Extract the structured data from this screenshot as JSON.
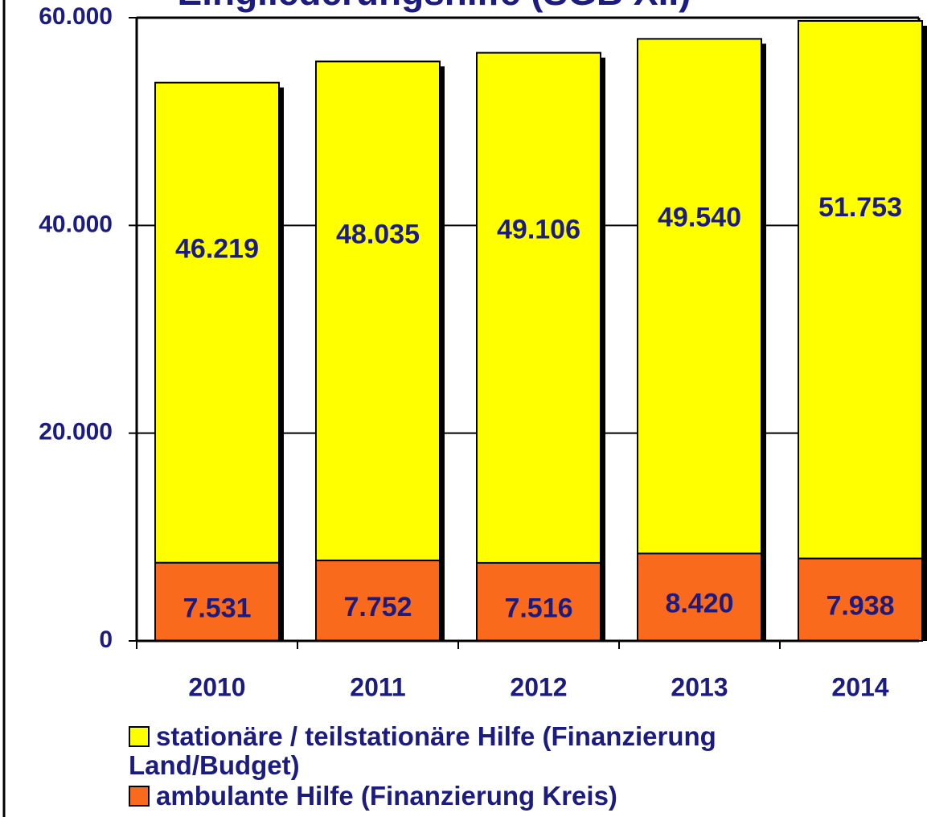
{
  "chart_data": {
    "type": "stacked-bar",
    "title": "Eingliederungshilfe (SGB XII)",
    "categories": [
      "2010",
      "2011",
      "2012",
      "2013",
      "2014"
    ],
    "series": [
      {
        "name": "ambulante Hilfe (Finanzierung Kreis)",
        "color": "#fa6a1c",
        "values": [
          7531,
          7752,
          7516,
          8420,
          7938
        ],
        "value_labels": [
          "7.531",
          "7.752",
          "7.516",
          "8.420",
          "7.938"
        ]
      },
      {
        "name": "stationäre / teilstationäre Hilfe (Finanzierung Land/Budget)",
        "color": "#ffff00",
        "values": [
          46219,
          48035,
          49106,
          49540,
          51753
        ],
        "value_labels": [
          "46.219",
          "48.035",
          "49.106",
          "49.540",
          "51.753"
        ]
      }
    ],
    "ylim": [
      0,
      60000
    ],
    "yticks": [
      0,
      {
        "value": 20000,
        "label": "20.000"
      },
      {
        "value": 40000,
        "label": "40.000"
      },
      {
        "value": 60000,
        "label": "60.000"
      }
    ],
    "grid": true
  }
}
